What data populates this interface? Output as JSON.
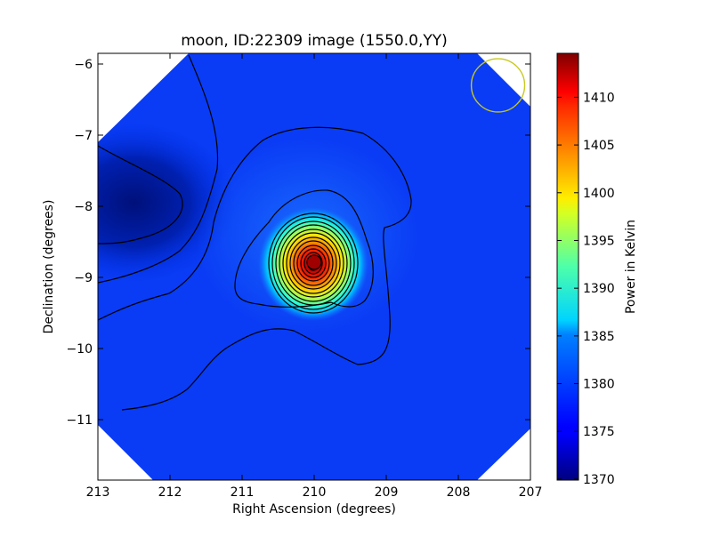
{
  "chart_data": {
    "type": "heatmap",
    "title": "moon, ID:22309 image (1550.0,YY)",
    "xlabel": "Right Ascension (degrees)",
    "ylabel": "Declination (degrees)",
    "xlim": [
      213,
      207
    ],
    "ylim": [
      -11.85,
      -5.85
    ],
    "x_ticks": [
      213,
      212,
      211,
      210,
      209,
      208,
      207
    ],
    "y_ticks": [
      -6,
      -7,
      -8,
      -9,
      -10,
      -11
    ],
    "colorbar": {
      "label": "Power in Kelvin",
      "range": [
        1369.9,
        1414.6
      ],
      "ticks": [
        1370,
        1375,
        1380,
        1385,
        1390,
        1395,
        1400,
        1405,
        1410
      ],
      "colormap": "jet"
    },
    "peak": {
      "ra": 210.0,
      "dec": -8.8,
      "value": 1414.6
    },
    "cold_region": {
      "ra": 212.5,
      "dec": -8.0,
      "value": 1369.9
    },
    "background_value": 1376,
    "beam_marker": {
      "ra": 207.45,
      "dec": -6.3,
      "radius_deg": 0.37,
      "color": "#c8c81e"
    },
    "contour_color": "#000000"
  }
}
